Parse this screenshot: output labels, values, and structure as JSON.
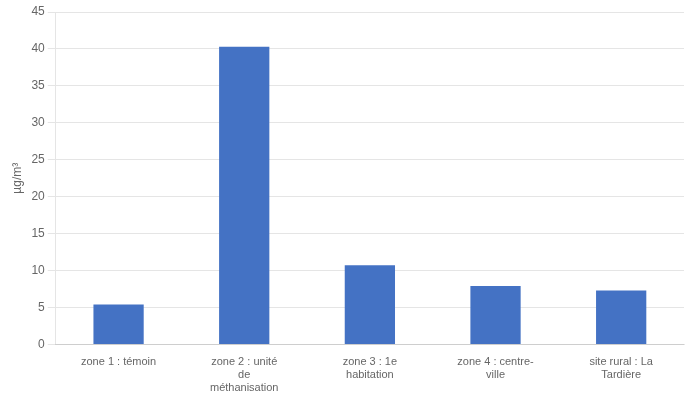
{
  "chart_data": {
    "type": "bar",
    "categories": [
      "zone 1 : témoin",
      "zone 2 : unité\nde\nméthanisation",
      "zone 3 : 1e\nhabitation",
      "zone 4 : centre-\nville",
      "site rural : La\nTardière"
    ],
    "values": [
      5.4,
      40.3,
      10.7,
      7.9,
      7.3
    ],
    "color": "#4472c4",
    "ylabel": "µg/m³",
    "ylim": [
      0,
      45
    ],
    "yticks": [
      0,
      5,
      10,
      15,
      20,
      25,
      30,
      35,
      40,
      45
    ],
    "grid": true
  }
}
